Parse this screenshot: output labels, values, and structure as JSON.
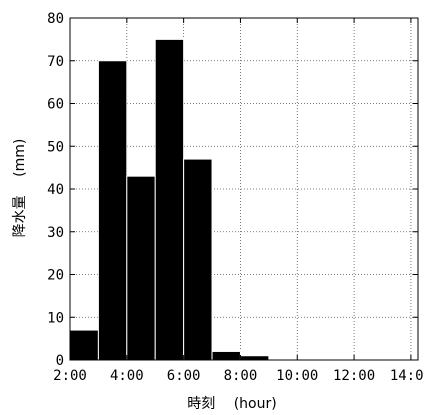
{
  "chart_data": {
    "type": "bar",
    "title": "",
    "xlabel": "時刻　 (hour)",
    "ylabel": "降水量　 (mm)",
    "x_ticks": [
      "2:00",
      "4:00",
      "6:00",
      "8:00",
      "10:00",
      "12:00",
      "14:00"
    ],
    "y_ticks": [
      "0",
      "10",
      "20",
      "30",
      "40",
      "50",
      "60",
      "70",
      "80"
    ],
    "xlim": [
      2,
      14.25
    ],
    "ylim": [
      0,
      80
    ],
    "grid": true,
    "bar_color": "#000000",
    "bars": [
      {
        "start": 2,
        "end": 3,
        "value": 7
      },
      {
        "start": 3,
        "end": 4,
        "value": 70
      },
      {
        "start": 4,
        "end": 5,
        "value": 43
      },
      {
        "start": 5,
        "end": 6,
        "value": 75
      },
      {
        "start": 6,
        "end": 7,
        "value": 47
      },
      {
        "start": 7,
        "end": 8,
        "value": 2
      },
      {
        "start": 8,
        "end": 9,
        "value": 1
      }
    ]
  }
}
